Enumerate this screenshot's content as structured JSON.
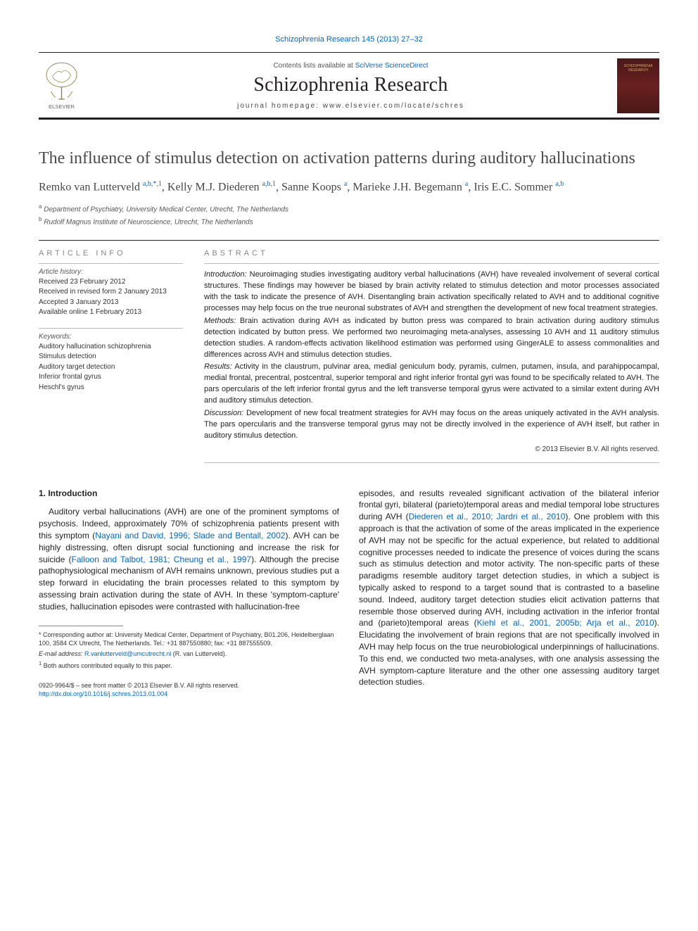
{
  "journal_ref": "Schizophrenia Research 145 (2013) 27–32",
  "header": {
    "contents_prefix": "Contents lists available at ",
    "contents_link": "SciVerse ScienceDirect",
    "journal_title": "Schizophrenia Research",
    "homepage_label": "journal homepage: ",
    "homepage_url": "www.elsevier.com/locate/schres",
    "cover_text": "SCHIZOPHRENIA RESEARCH"
  },
  "article": {
    "title": "The influence of stimulus detection on activation patterns during auditory hallucinations",
    "authors_html": "Remko van Lutterveld <sup>a,b,*,1</sup>, Kelly M.J. Diederen <sup>a,b,1</sup>, Sanne Koops <sup>a</sup>, Marieke J.H. Begemann <sup>a</sup>, Iris E.C. Sommer <sup>a,b</sup>",
    "affiliations": [
      {
        "sup": "a",
        "text": "Department of Psychiatry, University Medical Center, Utrecht, The Netherlands"
      },
      {
        "sup": "b",
        "text": "Rudolf Magnus Institute of Neuroscience, Utrecht, The Netherlands"
      }
    ]
  },
  "info": {
    "heading": "ARTICLE INFO",
    "history_label": "Article history:",
    "history": [
      "Received 23 February 2012",
      "Received in revised form 2 January 2013",
      "Accepted 3 January 2013",
      "Available online 1 February 2013"
    ],
    "keywords_label": "Keywords:",
    "keywords": [
      "Auditory hallucination schizophrenia",
      "Stimulus detection",
      "Auditory target detection",
      "Inferior frontal gyrus",
      "Heschl's gyrus"
    ]
  },
  "abstract": {
    "heading": "ABSTRACT",
    "sections": [
      {
        "label": "Introduction:",
        "text": "Neuroimaging studies investigating auditory verbal hallucinations (AVH) have revealed involvement of several cortical structures. These findings may however be biased by brain activity related to stimulus detection and motor processes associated with the task to indicate the presence of AVH. Disentangling brain activation specifically related to AVH and to additional cognitive processes may help focus on the true neuronal substrates of AVH and strengthen the development of new focal treatment strategies."
      },
      {
        "label": "Methods:",
        "text": "Brain activation during AVH as indicated by button press was compared to brain activation during auditory stimulus detection indicated by button press. We performed two neuroimaging meta-analyses, assessing 10 AVH and 11 auditory stimulus detection studies. A random-effects activation likelihood estimation was performed using GingerALE to assess commonalities and differences across AVH and stimulus detection studies."
      },
      {
        "label": "Results:",
        "text": "Activity in the claustrum, pulvinar area, medial geniculum body, pyramis, culmen, putamen, insula, and parahippocampal, medial frontal, precentral, postcentral, superior temporal and right inferior frontal gyri was found to be specifically related to AVH. The pars opercularis of the left inferior frontal gyrus and the left transverse temporal gyrus were activated to a similar extent during AVH and auditory stimulus detection."
      },
      {
        "label": "Discussion:",
        "text": "Development of new focal treatment strategies for AVH may focus on the areas uniquely activated in the AVH analysis. The pars opercularis and the transverse temporal gyrus may not be directly involved in the experience of AVH itself, but rather in auditory stimulus detection."
      }
    ],
    "copyright": "© 2013 Elsevier B.V. All rights reserved."
  },
  "body": {
    "section_heading": "1. Introduction",
    "col1_html": "Auditory verbal hallucinations (AVH) are one of the prominent symptoms of psychosis. Indeed, approximately 70% of schizophrenia patients present with this symptom (<span class=\"citation\">Nayani and David, 1996; Slade and Bentall, 2002</span>). AVH can be highly distressing, often disrupt social functioning and increase the risk for suicide (<span class=\"citation\">Falloon and Talbot, 1981; Cheung et al., 1997</span>). Although the precise pathophysiological mechanism of AVH remains unknown, previous studies put a step forward in elucidating the brain processes related to this symptom by assessing brain activation during the state of AVH. In these 'symptom-capture' studies, hallucination episodes were contrasted with hallucination-free",
    "col2_html": "episodes, and results revealed significant activation of the bilateral inferior frontal gyri, bilateral (parieto)temporal areas and medial temporal lobe structures during AVH (<span class=\"citation\">Diederen et al., 2010; Jardri et al., 2010</span>). One problem with this approach is that the activation of some of the areas implicated in the experience of AVH may not be specific for the actual experience, but related to additional cognitive processes needed to indicate the presence of voices during the scans such as stimulus detection and motor activity. The non-specific parts of these paradigms resemble auditory target detection studies, in which a subject is typically asked to respond to a target sound that is contrasted to a baseline sound. Indeed, auditory target detection studies elicit activation patterns that resemble those observed during AVH, including activation in the inferior frontal and (parieto)temporal areas (<span class=\"citation\">Kiehl et al., 2001, 2005b; Arja et al., 2010</span>). Elucidating the involvement of brain regions that are not specifically involved in AVH may help focus on the true neurobiological underpinnings of hallucinations. To this end, we conducted two meta-analyses, with one analysis assessing the AVH symptom-capture literature and the other one assessing auditory target detection studies."
  },
  "footnotes": {
    "corr": "* Corresponding author at: University Medical Center, Department of Psychiatry, B01.206, Heidelberglaan 100, 3584 CX Utrecht, The Netherlands. Tel.: +31 887550880; fax: +31 887555509.",
    "email_label": "E-mail address: ",
    "email": "R.vanlutterveld@umcutrecht.nl",
    "email_suffix": " (R. van Lutterveld).",
    "equal": "Both authors contributed equally to this paper.",
    "equal_sup": "1"
  },
  "bottom": {
    "line1": "0920-9964/$ – see front matter © 2013 Elsevier B.V. All rights reserved.",
    "doi": "http://dx.doi.org/10.1016/j.schres.2013.01.004"
  },
  "colors": {
    "link": "#0066cc",
    "text": "#231f20",
    "muted": "#888888",
    "cover_bg": "#4a1818",
    "cover_text": "#d0b060"
  }
}
